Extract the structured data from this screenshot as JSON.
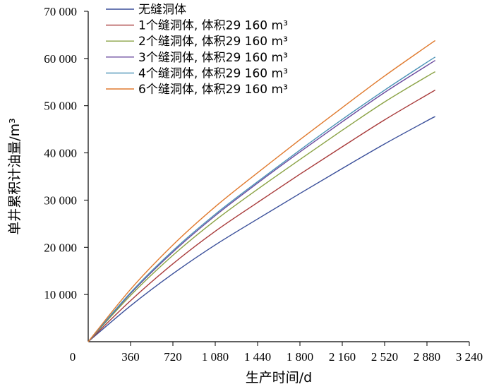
{
  "chart_data": {
    "type": "line",
    "xlabel": "生产时间/d",
    "ylabel": "单井累积计油量/m³",
    "xlim": [
      0,
      3240
    ],
    "ylim": [
      0,
      70000
    ],
    "x_ticks": [
      0,
      360,
      720,
      1080,
      1440,
      1800,
      2160,
      2520,
      2880,
      3240
    ],
    "x_tick_labels": [
      "0",
      "360",
      "720",
      "1 080",
      "1 440",
      "1 800",
      "2 160",
      "2 520",
      "2 880",
      "3 240"
    ],
    "y_ticks": [
      10000,
      20000,
      30000,
      40000,
      50000,
      60000,
      70000
    ],
    "y_tick_labels": [
      "10 000",
      "20 000",
      "30 000",
      "40 000",
      "50 000",
      "60 000",
      "70 000"
    ],
    "legend_position": "top-left",
    "grid": false,
    "series": [
      {
        "name": "无缝洞体",
        "color": "#3a4f9a",
        "x": [
          0,
          360,
          720,
          1080,
          1440,
          1800,
          2160,
          2520,
          2880,
          2950
        ],
        "y": [
          0,
          7600,
          14400,
          20500,
          26000,
          31400,
          36700,
          41900,
          46800,
          47700
        ]
      },
      {
        "name": "1个缝洞体, 体积29 160 m³",
        "color": "#a83a3a",
        "x": [
          0,
          360,
          720,
          1080,
          1440,
          1800,
          2160,
          2520,
          2880,
          2950
        ],
        "y": [
          0,
          8700,
          16500,
          23400,
          29500,
          35500,
          41300,
          47000,
          52300,
          53300
        ]
      },
      {
        "name": "2个缝洞体, 体积29 160 m³",
        "color": "#8aa244",
        "x": [
          0,
          360,
          720,
          1080,
          1440,
          1800,
          2160,
          2520,
          2880,
          2950
        ],
        "y": [
          0,
          9800,
          18300,
          25700,
          32300,
          38600,
          44800,
          50800,
          56200,
          57200
        ]
      },
      {
        "name": "3个缝洞体, 体积29 160 m³",
        "color": "#6a4a9e",
        "x": [
          0,
          360,
          720,
          1080,
          1440,
          1800,
          2160,
          2520,
          2880,
          2950
        ],
        "y": [
          0,
          10200,
          19000,
          26700,
          33600,
          40200,
          46600,
          52800,
          58500,
          59600
        ]
      },
      {
        "name": "4个缝洞体, 体积29 160 m³",
        "color": "#4a92b6",
        "x": [
          0,
          360,
          720,
          1080,
          1440,
          1800,
          2160,
          2520,
          2880,
          2950
        ],
        "y": [
          0,
          10400,
          19300,
          27000,
          33900,
          40600,
          47100,
          53300,
          59200,
          60300
        ]
      },
      {
        "name": "6个缝洞体, 体积29 160 m³",
        "color": "#e07a2e",
        "x": [
          0,
          360,
          720,
          1080,
          1440,
          1800,
          2160,
          2520,
          2880,
          2950
        ],
        "y": [
          0,
          11100,
          20500,
          28600,
          35800,
          42800,
          49600,
          56300,
          62600,
          63800
        ]
      }
    ]
  }
}
